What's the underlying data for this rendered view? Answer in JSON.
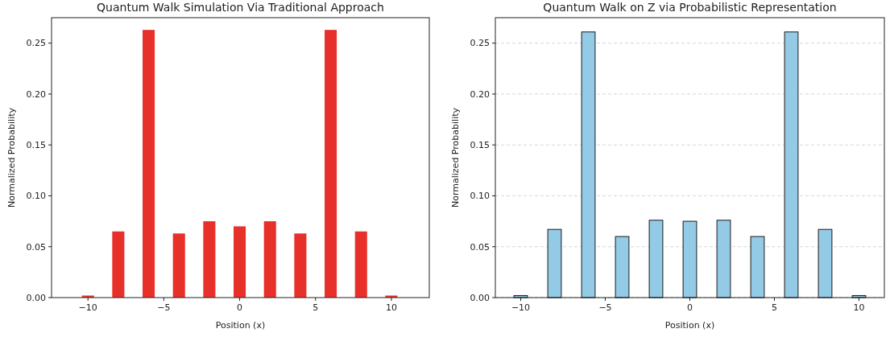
{
  "chart_data": [
    {
      "type": "bar",
      "title": "Quantum Walk Simulation Via Traditional Approach",
      "xlabel": "Position (x)",
      "ylabel": "Normalized Probability",
      "x": [
        -10,
        -8,
        -6,
        -4,
        -2,
        0,
        2,
        4,
        6,
        8,
        10
      ],
      "series": [
        {
          "color": "#e8302a",
          "values": [
            0.002,
            0.065,
            0.263,
            0.063,
            0.075,
            0.07,
            0.075,
            0.063,
            0.263,
            0.065,
            0.002
          ]
        }
      ],
      "xlim": [
        -12.4,
        12.5
      ],
      "xticks": [
        -10,
        -5,
        0,
        5,
        10
      ],
      "ylim": [
        0,
        0.275
      ],
      "yticks": [
        {
          "value": 0,
          "label": "0.00"
        },
        0.05,
        {
          "value": 0.1,
          "label": "0.10"
        },
        0.15,
        {
          "value": 0.2,
          "label": "0.20"
        },
        0.25
      ],
      "grid": false
    },
    {
      "type": "bar",
      "title": "Quantum Walk on Z via Probabilistic Representation",
      "xlabel": "Position (x)",
      "ylabel": "Normalized Probability",
      "x": [
        -10,
        -8,
        -6,
        -4,
        -2,
        0,
        2,
        4,
        6,
        8,
        10
      ],
      "series": [
        {
          "color": "#93cae6",
          "values": [
            0.002,
            0.067,
            0.261,
            0.06,
            0.076,
            0.075,
            0.076,
            0.06,
            0.261,
            0.067,
            0.002
          ]
        }
      ],
      "xlim": [
        -11.5,
        11.5
      ],
      "xticks": [
        -10,
        -5,
        0,
        5,
        10
      ],
      "ylim": [
        0,
        0.275
      ],
      "yticks": [
        {
          "value": 0,
          "label": "0.00"
        },
        0.05,
        {
          "value": 0.1,
          "label": "0.10"
        },
        0.15,
        {
          "value": 0.2,
          "label": "0.20"
        },
        0.25
      ],
      "grid": "y"
    }
  ]
}
